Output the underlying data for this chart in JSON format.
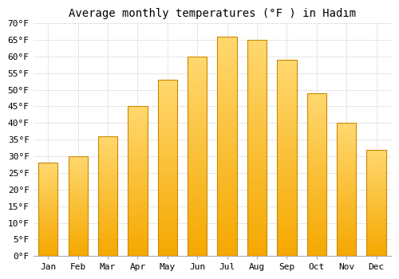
{
  "title": "Average monthly temperatures (°F ) in Hadım",
  "months": [
    "Jan",
    "Feb",
    "Mar",
    "Apr",
    "May",
    "Jun",
    "Jul",
    "Aug",
    "Sep",
    "Oct",
    "Nov",
    "Dec"
  ],
  "values": [
    28,
    30,
    36,
    45,
    53,
    60,
    66,
    65,
    59,
    49,
    40,
    32
  ],
  "bar_color_bottom": "#F5A800",
  "bar_color_top": "#FFD870",
  "bar_edge_color": "#CC8800",
  "background_color": "#FFFFFF",
  "grid_color": "#DDDDDD",
  "ylim": [
    0,
    70
  ],
  "yticks": [
    0,
    5,
    10,
    15,
    20,
    25,
    30,
    35,
    40,
    45,
    50,
    55,
    60,
    65,
    70
  ],
  "ylabel_suffix": "°F",
  "title_fontsize": 10,
  "tick_fontsize": 8
}
